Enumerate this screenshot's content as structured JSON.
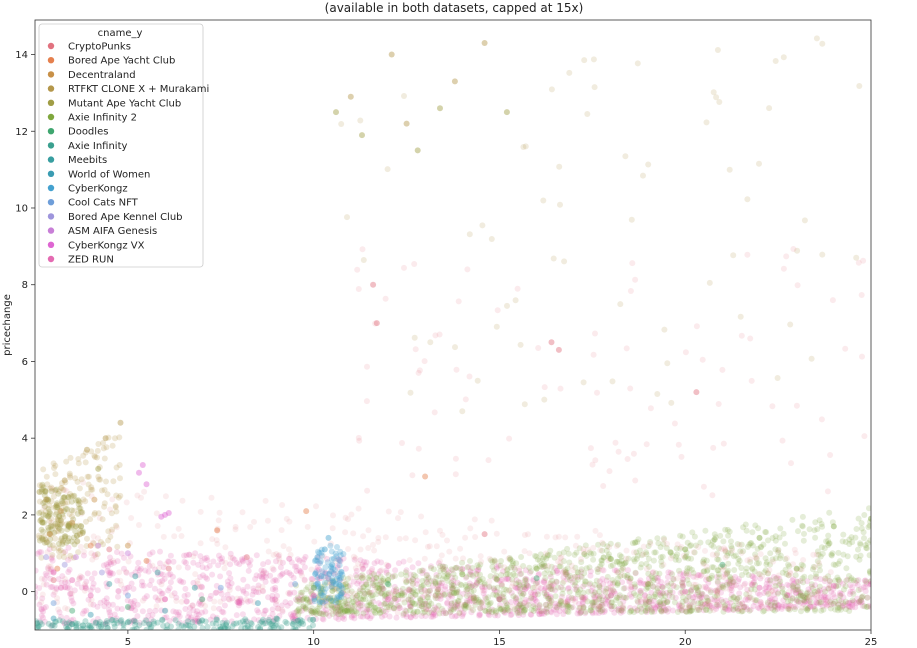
{
  "chart_data": {
    "type": "scatter",
    "title_line2": "(available in both datasets, capped at 15x)",
    "xlabel": "",
    "ylabel": "pricechange",
    "xlim": [
      2.5,
      25
    ],
    "ylim": [
      -1.0,
      14.9
    ],
    "x_ticks": [
      5,
      10,
      15,
      20,
      25
    ],
    "y_ticks": [
      0,
      2,
      4,
      6,
      8,
      10,
      12,
      14
    ],
    "grid": false,
    "legend": {
      "title": "cname_y",
      "placement": "top-left"
    },
    "series": [
      {
        "name": "CryptoPunks",
        "color": "#e1727f",
        "points": [
          [
            3.0,
            0.3
          ],
          [
            4.5,
            1.1
          ],
          [
            6.1,
            0.6
          ],
          [
            8.2,
            0.9
          ],
          [
            11.6,
            8.0
          ],
          [
            11.7,
            7.0
          ],
          [
            16.4,
            6.5
          ],
          [
            16.6,
            6.3
          ],
          [
            20.3,
            5.2
          ],
          [
            14.6,
            1.5
          ]
        ]
      },
      {
        "name": "Bored Ape Yacht Club",
        "color": "#e5804e",
        "points": [
          [
            3.1,
            0.6
          ],
          [
            4.0,
            1.2
          ],
          [
            5.5,
            0.8
          ],
          [
            7.4,
            1.6
          ],
          [
            9.8,
            2.1
          ],
          [
            13.0,
            3.0
          ]
        ]
      },
      {
        "name": "Decentraland",
        "color": "#c89047",
        "points": [
          [
            3.2,
            2.1
          ],
          [
            3.5,
            1.8
          ],
          [
            4.1,
            2.4
          ],
          [
            2.9,
            1.5
          ],
          [
            5.0,
            1.2
          ]
        ]
      },
      {
        "name": "RTFKT CLONE X + Murakami",
        "color": "#b4974b",
        "points": [
          [
            2.8,
            2.4
          ],
          [
            3.3,
            2.9
          ],
          [
            3.9,
            3.7
          ],
          [
            4.4,
            4.0
          ],
          [
            4.8,
            4.4
          ],
          [
            11.0,
            12.9
          ],
          [
            12.5,
            12.2
          ],
          [
            13.8,
            13.3
          ],
          [
            14.6,
            14.3
          ],
          [
            12.1,
            14.0
          ]
        ]
      },
      {
        "name": "Mutant Ape Yacht Club",
        "color": "#a09d45",
        "points": [
          [
            2.7,
            1.8
          ],
          [
            3.1,
            2.2
          ],
          [
            3.6,
            1.7
          ],
          [
            4.2,
            3.2
          ],
          [
            10.6,
            12.5
          ],
          [
            11.3,
            11.9
          ],
          [
            13.4,
            12.6
          ],
          [
            15.2,
            12.5
          ],
          [
            12.8,
            11.5
          ]
        ]
      },
      {
        "name": "Axie Infinity 2",
        "color": "#7fa73d",
        "points": [
          [
            10.0,
            0.1
          ],
          [
            12.0,
            0.3
          ],
          [
            14.0,
            0.45
          ],
          [
            16.0,
            0.6
          ],
          [
            18.0,
            0.85
          ],
          [
            20.0,
            1.1
          ],
          [
            22.0,
            1.4
          ],
          [
            24.0,
            1.7
          ],
          [
            25.0,
            1.9
          ],
          [
            15.0,
            -0.2
          ],
          [
            19.0,
            0.2
          ],
          [
            23.0,
            0.6
          ]
        ]
      },
      {
        "name": "Doodles",
        "color": "#3fa66f",
        "points": [
          [
            3.5,
            -0.5
          ],
          [
            5.0,
            -0.4
          ],
          [
            7.0,
            -0.2
          ],
          [
            12.0,
            0.2
          ],
          [
            16.0,
            0.35
          ],
          [
            21.0,
            0.7
          ]
        ]
      },
      {
        "name": "Axie Infinity",
        "color": "#3aa08f",
        "points": [
          [
            2.6,
            -0.9
          ],
          [
            3.5,
            -0.85
          ],
          [
            5.0,
            -0.8
          ],
          [
            7.0,
            -0.75
          ],
          [
            9.0,
            -0.7
          ]
        ]
      },
      {
        "name": "Meebits",
        "color": "#389ea0",
        "points": [
          [
            4.5,
            0.2
          ],
          [
            5.2,
            0.4
          ],
          [
            5.8,
            0.5
          ],
          [
            6.8,
            0.1
          ]
        ]
      },
      {
        "name": "World of Women",
        "color": "#3a9cb2",
        "points": [
          [
            3.0,
            -0.7
          ],
          [
            4.0,
            -0.6
          ],
          [
            6.0,
            -0.5
          ],
          [
            8.5,
            -0.3
          ]
        ]
      },
      {
        "name": "CyberKongz",
        "color": "#44a1cf",
        "points": [
          [
            10.1,
            0.9
          ],
          [
            10.3,
            1.1
          ],
          [
            10.5,
            0.7
          ],
          [
            10.2,
            0.4
          ],
          [
            10.6,
            0.2
          ],
          [
            10.4,
            1.4
          ]
        ]
      },
      {
        "name": "Cool Cats NFT",
        "color": "#6e9ed9",
        "points": [
          [
            3.0,
            -0.3
          ],
          [
            5.0,
            -0.1
          ],
          [
            7.5,
            0.1
          ],
          [
            9.5,
            0.2
          ]
        ]
      },
      {
        "name": "Bored Ape Kennel Club",
        "color": "#9e95dc",
        "points": [
          [
            2.8,
            0.9
          ],
          [
            3.3,
            0.7
          ],
          [
            4.3,
            0.5
          ]
        ]
      },
      {
        "name": "ASM AIFA Genesis",
        "color": "#c87fd7",
        "points": [
          [
            3.6,
            0.9
          ],
          [
            4.2,
            1.2
          ],
          [
            5.0,
            1.0
          ]
        ]
      },
      {
        "name": "CyberKongz VX",
        "color": "#de66d2",
        "points": [
          [
            5.3,
            3.1
          ],
          [
            5.5,
            2.8
          ],
          [
            5.4,
            3.3
          ],
          [
            6.0,
            2.0
          ],
          [
            6.1,
            2.05
          ],
          [
            5.9,
            1.95
          ]
        ]
      },
      {
        "name": "ZED RUN",
        "color": "#e46bb2",
        "points": [
          [
            3.0,
            0.5
          ],
          [
            3.2,
            0.1
          ],
          [
            3.5,
            0.3
          ],
          [
            4.0,
            -0.1
          ],
          [
            6.0,
            -0.2
          ],
          [
            8.0,
            -0.3
          ],
          [
            10.0,
            -0.1
          ],
          [
            12.0,
            -0.2
          ],
          [
            15.0,
            -0.2
          ],
          [
            18.0,
            -0.1
          ],
          [
            20.0,
            0.0
          ],
          [
            22.0,
            0.1
          ],
          [
            24.0,
            0.15
          ],
          [
            25.0,
            0.2
          ]
        ]
      }
    ],
    "bands": [
      {
        "series": 15,
        "shape": "tri",
        "x0": 2.5,
        "x1": 25,
        "y_top0": 1.2,
        "y_bot0": -0.9,
        "y_top1": 0.3,
        "y_bot1": -0.4,
        "n": 1400,
        "alpha": 0.22
      },
      {
        "series": 5,
        "shape": "tri",
        "x0": 9.5,
        "x1": 25,
        "y_top0": 0.2,
        "y_bot0": -0.6,
        "y_top1": 2.2,
        "y_bot1": -0.5,
        "n": 1300,
        "alpha": 0.2
      },
      {
        "series": 0,
        "shape": "box",
        "x0": 2.6,
        "x1": 24,
        "y_top0": 3.0,
        "y_bot0": -0.6,
        "y_top1": 1.0,
        "y_bot1": -0.5,
        "n": 450,
        "alpha": 0.12
      },
      {
        "series": 3,
        "shape": "box",
        "x0": 2.6,
        "x1": 4.8,
        "y_top0": 3.2,
        "y_bot0": 0.8,
        "y_top1": 4.2,
        "y_bot1": 1.0,
        "n": 160,
        "alpha": 0.22
      },
      {
        "series": 4,
        "shape": "box",
        "x0": 2.6,
        "x1": 3.8,
        "y_top0": 2.9,
        "y_bot0": 1.2,
        "y_top1": 2.5,
        "y_bot1": 1.2,
        "n": 120,
        "alpha": 0.3
      },
      {
        "series": 10,
        "shape": "box",
        "x0": 10.0,
        "x1": 10.8,
        "y_top0": 1.2,
        "y_bot0": -0.3,
        "y_top1": 1.2,
        "y_bot1": -0.3,
        "n": 90,
        "alpha": 0.3
      },
      {
        "series": 7,
        "shape": "box",
        "x0": 2.5,
        "x1": 10,
        "y_top0": -0.75,
        "y_bot0": -1.0,
        "y_top1": -0.7,
        "y_bot1": -1.0,
        "n": 180,
        "alpha": 0.3
      },
      {
        "series": 3,
        "shape": "box",
        "x0": 10.5,
        "x1": 25,
        "y_top0": 14.5,
        "y_bot0": 4.5,
        "y_top1": 14.5,
        "y_bot1": 4.5,
        "n": 70,
        "alpha": 0.18
      },
      {
        "series": 0,
        "shape": "box",
        "x0": 11,
        "x1": 25,
        "y_top0": 9.0,
        "y_bot0": 2.5,
        "y_top1": 9.0,
        "y_bot1": 2.5,
        "n": 90,
        "alpha": 0.14
      }
    ]
  }
}
